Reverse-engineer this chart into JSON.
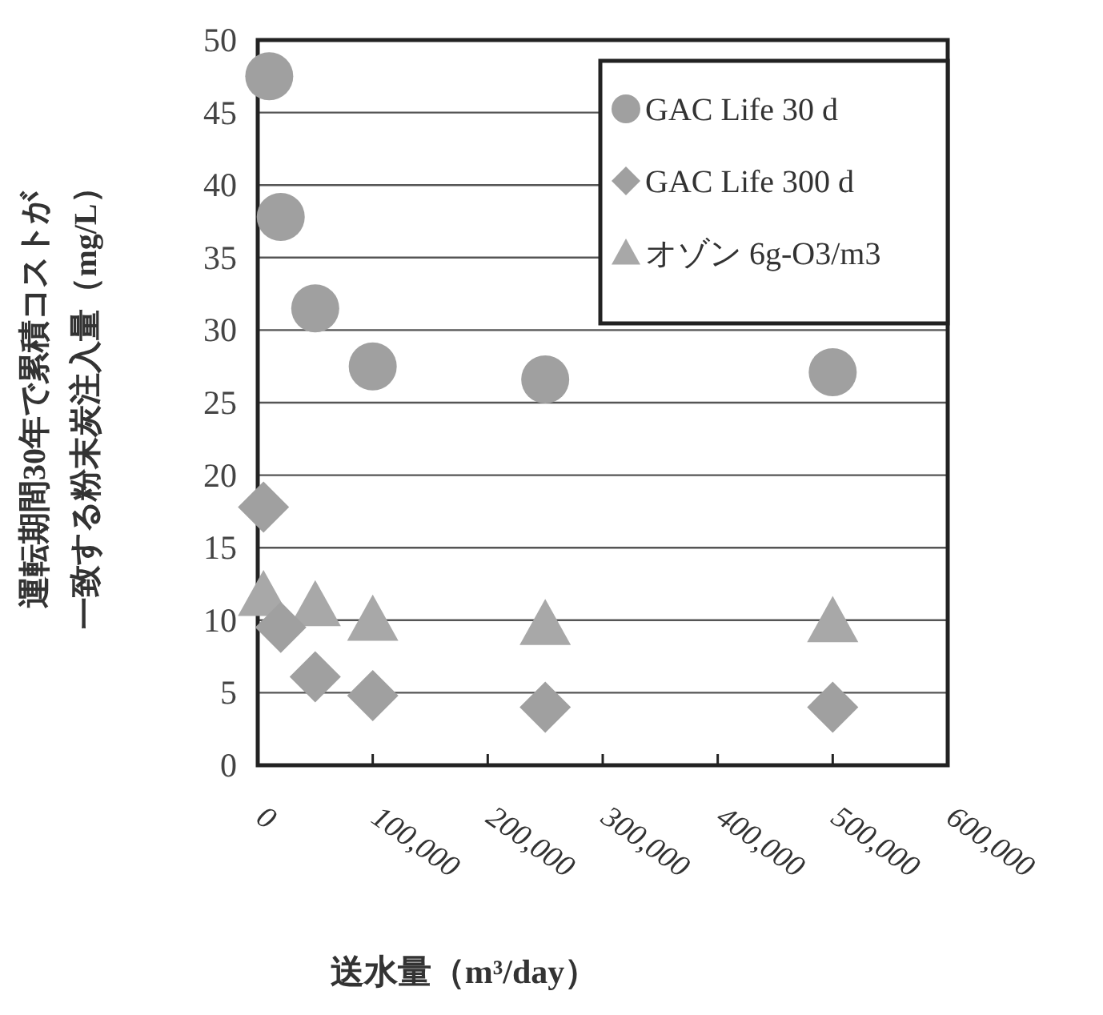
{
  "chart_data": {
    "type": "scatter",
    "xlabel": "送水量（m³/day）",
    "ylabel": "運転期間30年で累積コストが一致する粉末炭注入量（mg/L）",
    "xlim": [
      0,
      600000
    ],
    "xticks": [
      0,
      {
        "value": 100000,
        "label": "100,000"
      },
      {
        "value": 200000,
        "label": "200,000"
      },
      {
        "value": 300000,
        "label": "300,000"
      },
      {
        "value": 400000,
        "label": "400,000"
      },
      {
        "value": 500000,
        "label": "500,000"
      },
      {
        "value": 600000,
        "label": "600,000"
      }
    ],
    "ylim": [
      0,
      50
    ],
    "yticks": [
      0,
      5,
      10,
      15,
      20,
      25,
      30,
      35,
      40,
      45,
      50
    ],
    "grid": "y",
    "legend": "top right",
    "series": [
      {
        "name": "GAC Life 30 d",
        "color": "#a0a0a0",
        "marker": "circle",
        "x": [
          10000,
          20000,
          50000,
          100000,
          250000,
          500000
        ],
        "values": [
          47.5,
          37.8,
          31.5,
          27.5,
          26.6,
          27.1
        ]
      },
      {
        "name": "GAC Life 300 d",
        "color": "#a0a0a0",
        "marker": "diamond",
        "x": [
          5000,
          20000,
          50000,
          100000,
          250000,
          500000
        ],
        "values": [
          17.8,
          9.5,
          6.1,
          4.8,
          4,
          4
        ]
      },
      {
        "name": "オゾン 6g-O3/m3",
        "color": "#a8a8a8",
        "marker": "triangle",
        "x": [
          5000,
          50000,
          100000,
          250000,
          500000
        ],
        "values": [
          11.7,
          11,
          10,
          9.7,
          9.9
        ]
      }
    ]
  }
}
